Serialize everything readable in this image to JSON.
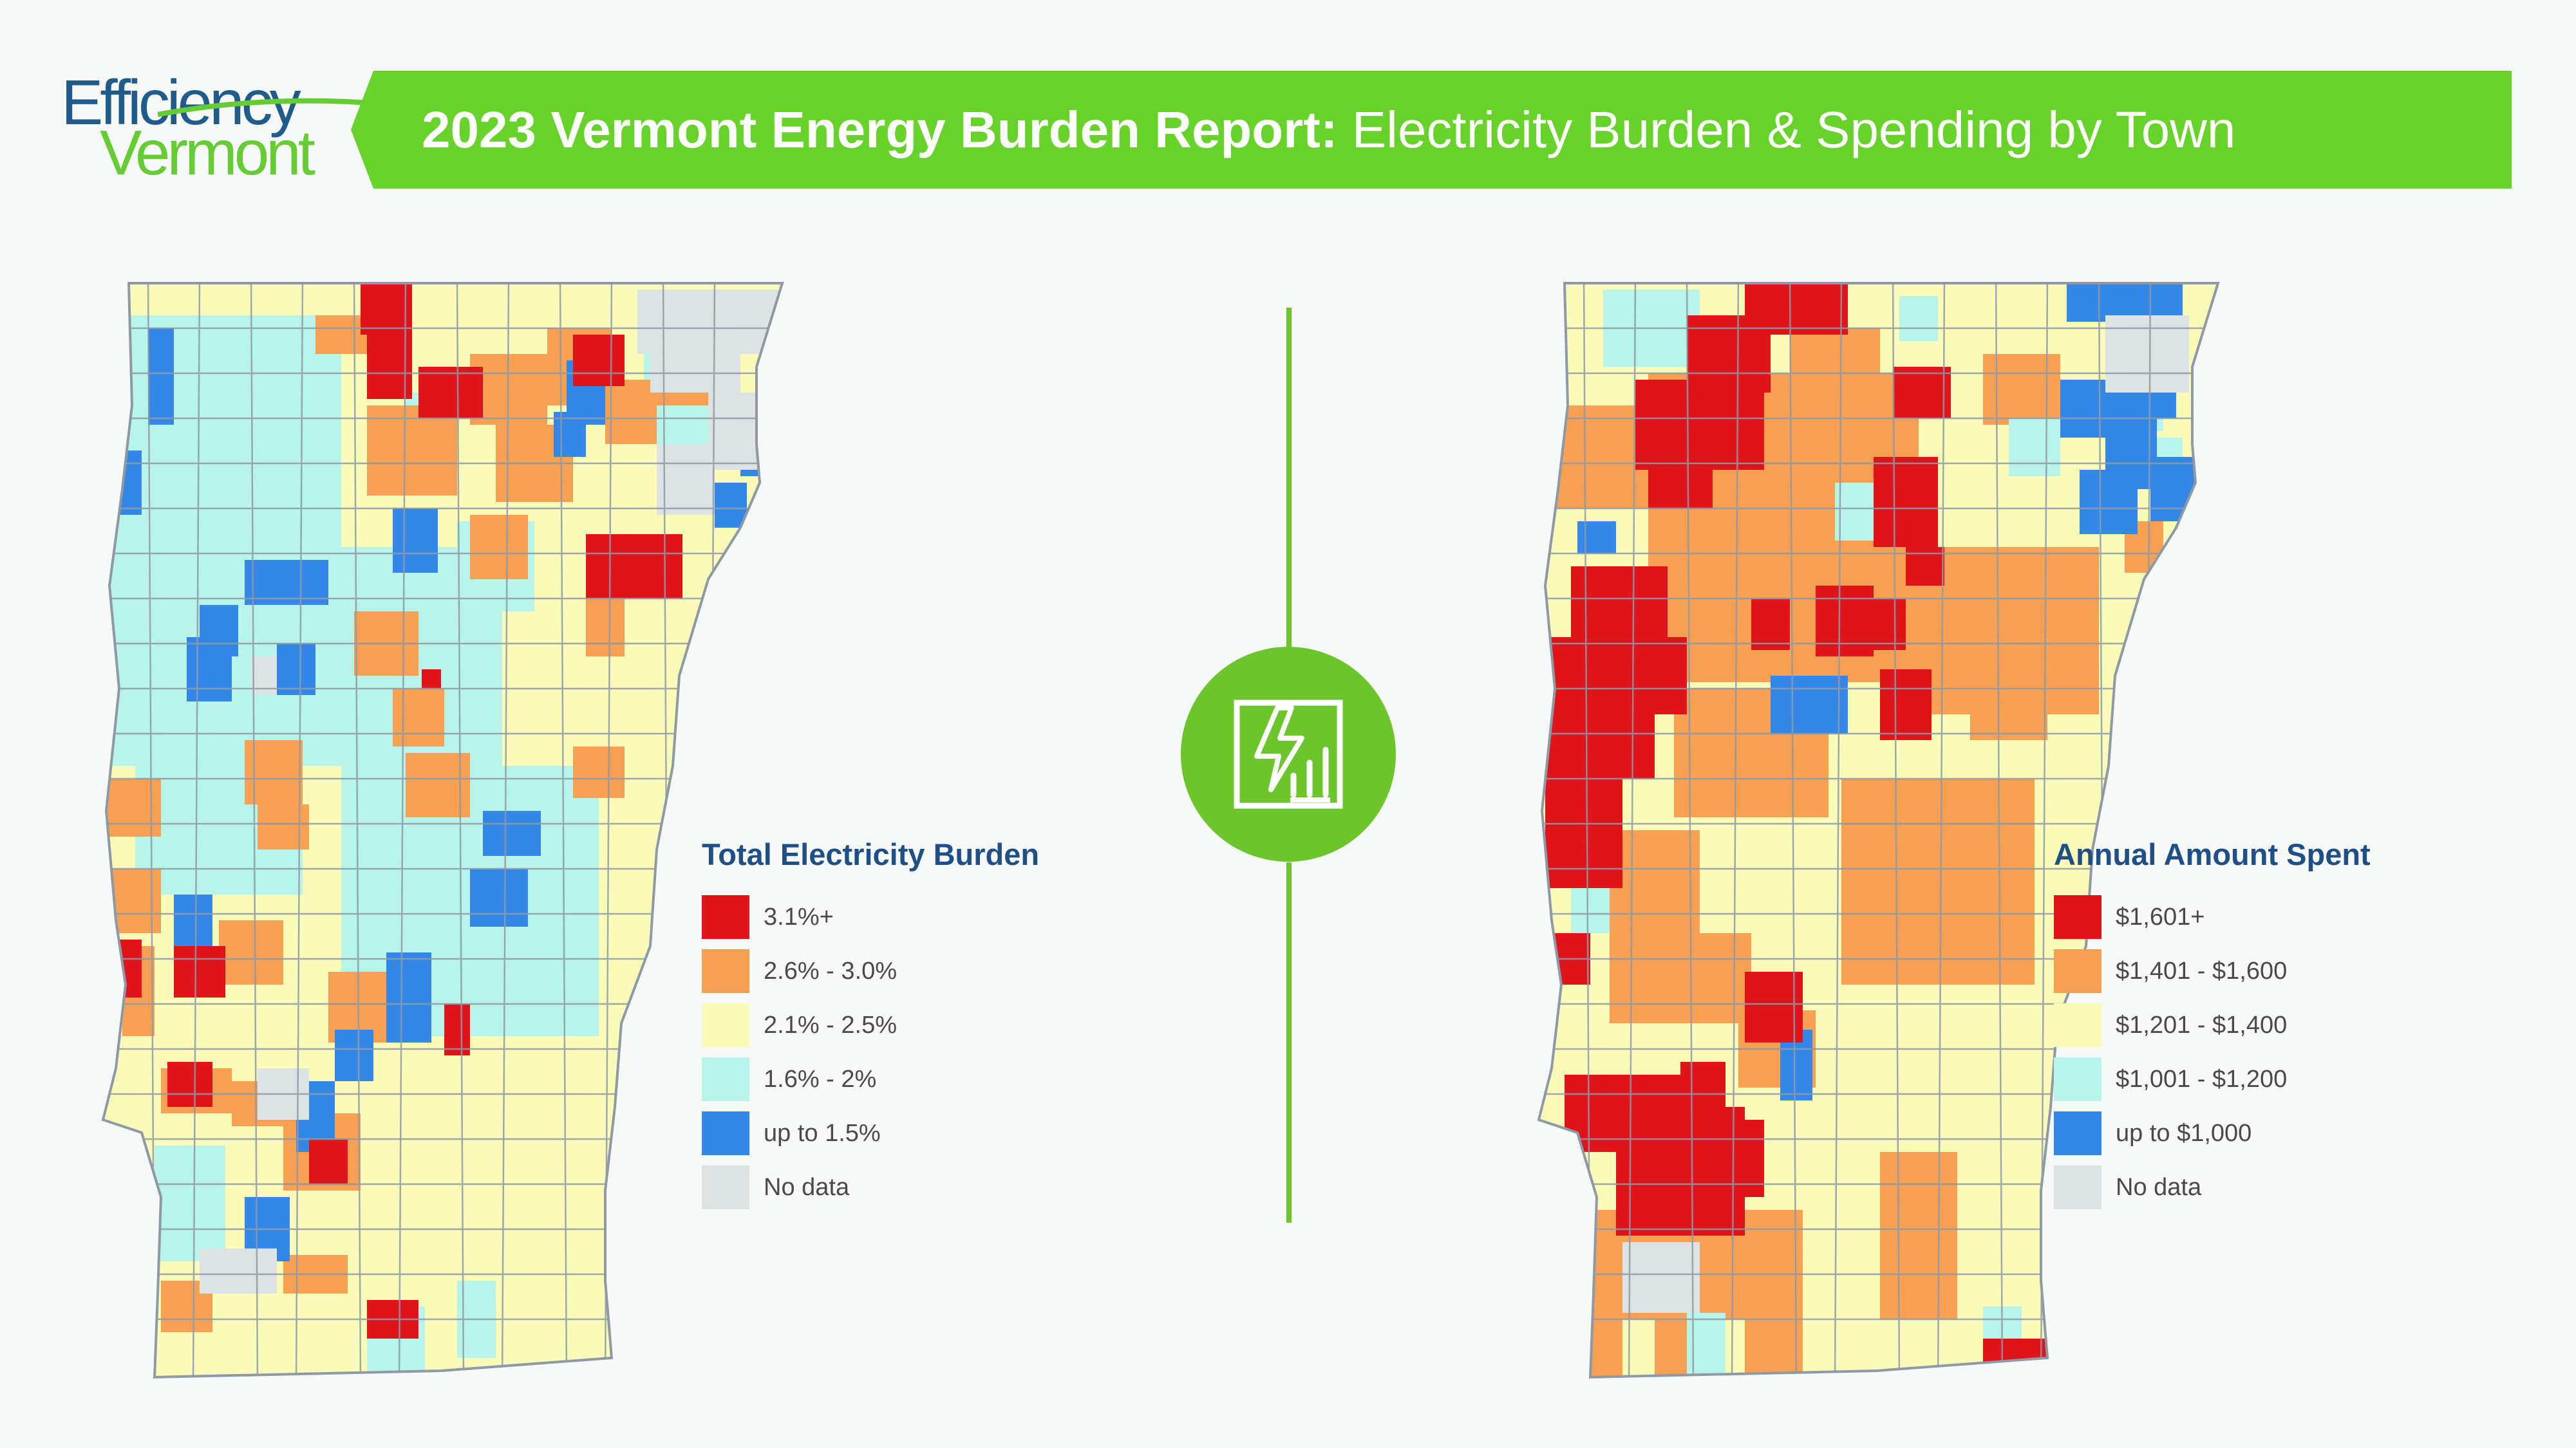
{
  "logo": {
    "line1": "Efficiency",
    "line2": "Vermont"
  },
  "header": {
    "title_bold": "2023 Vermont Energy Burden Report:",
    "title_rest": " Electricity Burden & Spending by Town"
  },
  "colors": {
    "banner": "#66d22a",
    "accent_green": "#6bc52b",
    "legend_title": "#1e4f86",
    "red": "#e0141b",
    "orange": "#f7a053",
    "yellow": "#fbfbb9",
    "cyan": "#b8f4ea",
    "blue": "#3487e6",
    "nodata": "#dde2e3"
  },
  "center_icon": "electricity-chart-icon",
  "maps": [
    {
      "legend": {
        "title": "Total Electricity Burden",
        "items": [
          {
            "label": "3.1%+",
            "color": "#e0141b"
          },
          {
            "label": "2.6% - 3.0%",
            "color": "#f7a053"
          },
          {
            "label": "2.1% - 2.5%",
            "color": "#fbfbb9"
          },
          {
            "label": "1.6% - 2%",
            "color": "#b8f4ea"
          },
          {
            "label": "up to 1.5%",
            "color": "#3487e6"
          },
          {
            "label": "No data",
            "color": "#dde2e3"
          }
        ]
      }
    },
    {
      "legend": {
        "title": "Annual Amount Spent",
        "items": [
          {
            "label": "$1,601+",
            "color": "#e0141b"
          },
          {
            "label": "$1,401 - $1,600",
            "color": "#f7a053"
          },
          {
            "label": "$1,201 - $1,400",
            "color": "#fbfbb9"
          },
          {
            "label": "$1,001 - $1,200",
            "color": "#b8f4ea"
          },
          {
            "label": "up to $1,000",
            "color": "#3487e6"
          },
          {
            "label": "No data",
            "color": "#dde2e3"
          }
        ]
      }
    }
  ]
}
